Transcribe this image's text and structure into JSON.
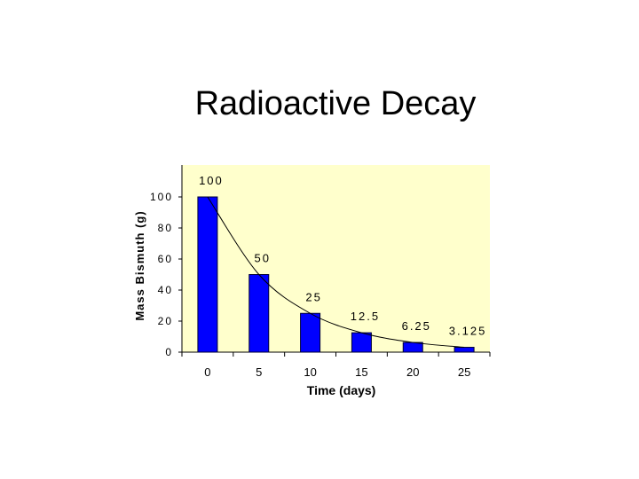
{
  "slide": {
    "title": "Radioactive Decay"
  },
  "colors": {
    "plot_background": "#ffffcc",
    "bar": "#0000ff",
    "bar_edge": "#000033",
    "curve": "#000000"
  },
  "chart_data": {
    "type": "bar",
    "title": "",
    "xlabel": "Time (days)",
    "ylabel": "Mass Bismuth (g)",
    "categories": [
      "0",
      "5",
      "10",
      "15",
      "20",
      "25"
    ],
    "values": [
      100,
      50,
      25,
      12.5,
      6.25,
      3.125
    ],
    "data_labels": [
      "100",
      "50",
      "25",
      "12.5",
      "6.25",
      "3.125"
    ],
    "ylim": [
      0,
      100
    ],
    "yticks": [
      "0",
      "20",
      "40",
      "60",
      "80",
      "100"
    ],
    "grid": false,
    "legend": "none",
    "overlay": "smooth decay curve through bar tops"
  }
}
